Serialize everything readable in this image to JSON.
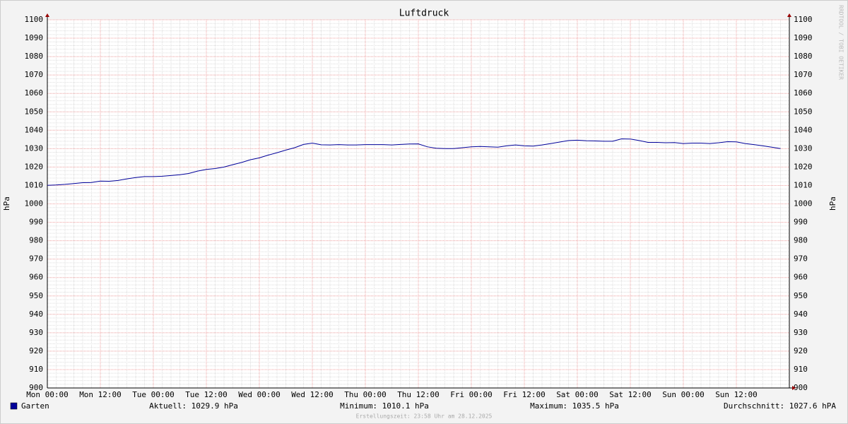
{
  "chart_data": {
    "type": "line",
    "title": "Luftdruck",
    "y_label": "hPa",
    "y2_label": "hPa",
    "ylim": [
      900,
      1100
    ],
    "yticks": [
      900,
      910,
      920,
      930,
      940,
      950,
      960,
      970,
      980,
      990,
      1000,
      1010,
      1020,
      1030,
      1040,
      1050,
      1060,
      1070,
      1080,
      1090,
      1100
    ],
    "xticks": [
      "Mon 00:00",
      "Mon 12:00",
      "Tue 00:00",
      "Tue 12:00",
      "Wed 00:00",
      "Wed 12:00",
      "Thu 00:00",
      "Thu 12:00",
      "Fri 00:00",
      "Fri 12:00",
      "Sat 00:00",
      "Sat 12:00",
      "Sun 00:00",
      "Sun 12:00"
    ],
    "grid": true,
    "x": [
      "Mon 00:00",
      "Mon 02:00",
      "Mon 04:00",
      "Mon 06:00",
      "Mon 08:00",
      "Mon 10:00",
      "Mon 12:00",
      "Mon 14:00",
      "Mon 16:00",
      "Mon 18:00",
      "Mon 20:00",
      "Mon 22:00",
      "Tue 00:00",
      "Tue 02:00",
      "Tue 04:00",
      "Tue 06:00",
      "Tue 08:00",
      "Tue 10:00",
      "Tue 12:00",
      "Tue 14:00",
      "Tue 16:00",
      "Tue 18:00",
      "Tue 20:00",
      "Tue 22:00",
      "Wed 00:00",
      "Wed 02:00",
      "Wed 04:00",
      "Wed 06:00",
      "Wed 08:00",
      "Wed 10:00",
      "Wed 12:00",
      "Wed 14:00",
      "Wed 16:00",
      "Wed 18:00",
      "Wed 20:00",
      "Wed 22:00",
      "Thu 00:00",
      "Thu 02:00",
      "Thu 04:00",
      "Thu 06:00",
      "Thu 08:00",
      "Thu 10:00",
      "Thu 12:00",
      "Thu 14:00",
      "Thu 16:00",
      "Thu 18:00",
      "Thu 20:00",
      "Thu 22:00",
      "Fri 00:00",
      "Fri 02:00",
      "Fri 04:00",
      "Fri 06:00",
      "Fri 08:00",
      "Fri 10:00",
      "Fri 12:00",
      "Fri 14:00",
      "Fri 16:00",
      "Fri 18:00",
      "Fri 20:00",
      "Fri 22:00",
      "Sat 00:00",
      "Sat 02:00",
      "Sat 04:00",
      "Sat 06:00",
      "Sat 08:00",
      "Sat 10:00",
      "Sat 12:00",
      "Sat 14:00",
      "Sat 16:00",
      "Sat 18:00",
      "Sat 20:00",
      "Sat 22:00",
      "Sun 00:00",
      "Sun 02:00",
      "Sun 04:00",
      "Sun 06:00",
      "Sun 08:00",
      "Sun 10:00",
      "Sun 12:00",
      "Sun 14:00",
      "Sun 16:00",
      "Sun 18:00",
      "Sun 20:00",
      "Sun 22:00"
    ],
    "series": [
      {
        "name": "Garten",
        "color": "#000099",
        "values": [
          1010.1,
          1010.3,
          1010.6,
          1011.0,
          1011.5,
          1011.6,
          1012.4,
          1012.3,
          1012.7,
          1013.6,
          1014.3,
          1014.8,
          1014.8,
          1015.0,
          1015.4,
          1015.8,
          1016.5,
          1017.8,
          1018.7,
          1019.2,
          1020.0,
          1021.3,
          1022.5,
          1024.0,
          1025.0,
          1026.5,
          1027.8,
          1029.2,
          1030.5,
          1032.3,
          1033.0,
          1032.1,
          1032.0,
          1032.2,
          1032.0,
          1032.0,
          1032.2,
          1032.2,
          1032.2,
          1032.0,
          1032.3,
          1032.5,
          1032.6,
          1031.0,
          1030.2,
          1030.0,
          1030.0,
          1030.5,
          1031.0,
          1031.2,
          1031.0,
          1030.8,
          1031.5,
          1032.0,
          1031.5,
          1031.4,
          1032.0,
          1032.8,
          1033.6,
          1034.4,
          1034.6,
          1034.3,
          1034.2,
          1034.0,
          1034.0,
          1035.3,
          1035.2,
          1034.4,
          1033.4,
          1033.4,
          1033.2,
          1033.3,
          1032.8,
          1033.0,
          1033.0,
          1032.8,
          1033.2,
          1033.8,
          1033.7,
          1032.8,
          1032.2,
          1031.5,
          1030.8,
          1030.0
        ]
      }
    ],
    "legend_stats": [
      "Aktuell: 1029.9 hPa",
      "Minimum: 1010.1 hPa",
      "Maximum: 1035.5 hPa",
      "Durchschnitt: 1027.6 hPA"
    ],
    "footer": "Erstellungszeit: 23:58 Uhr am 28.12.2025",
    "watermark": "RRDTOOL / TOBI OETIKER"
  }
}
